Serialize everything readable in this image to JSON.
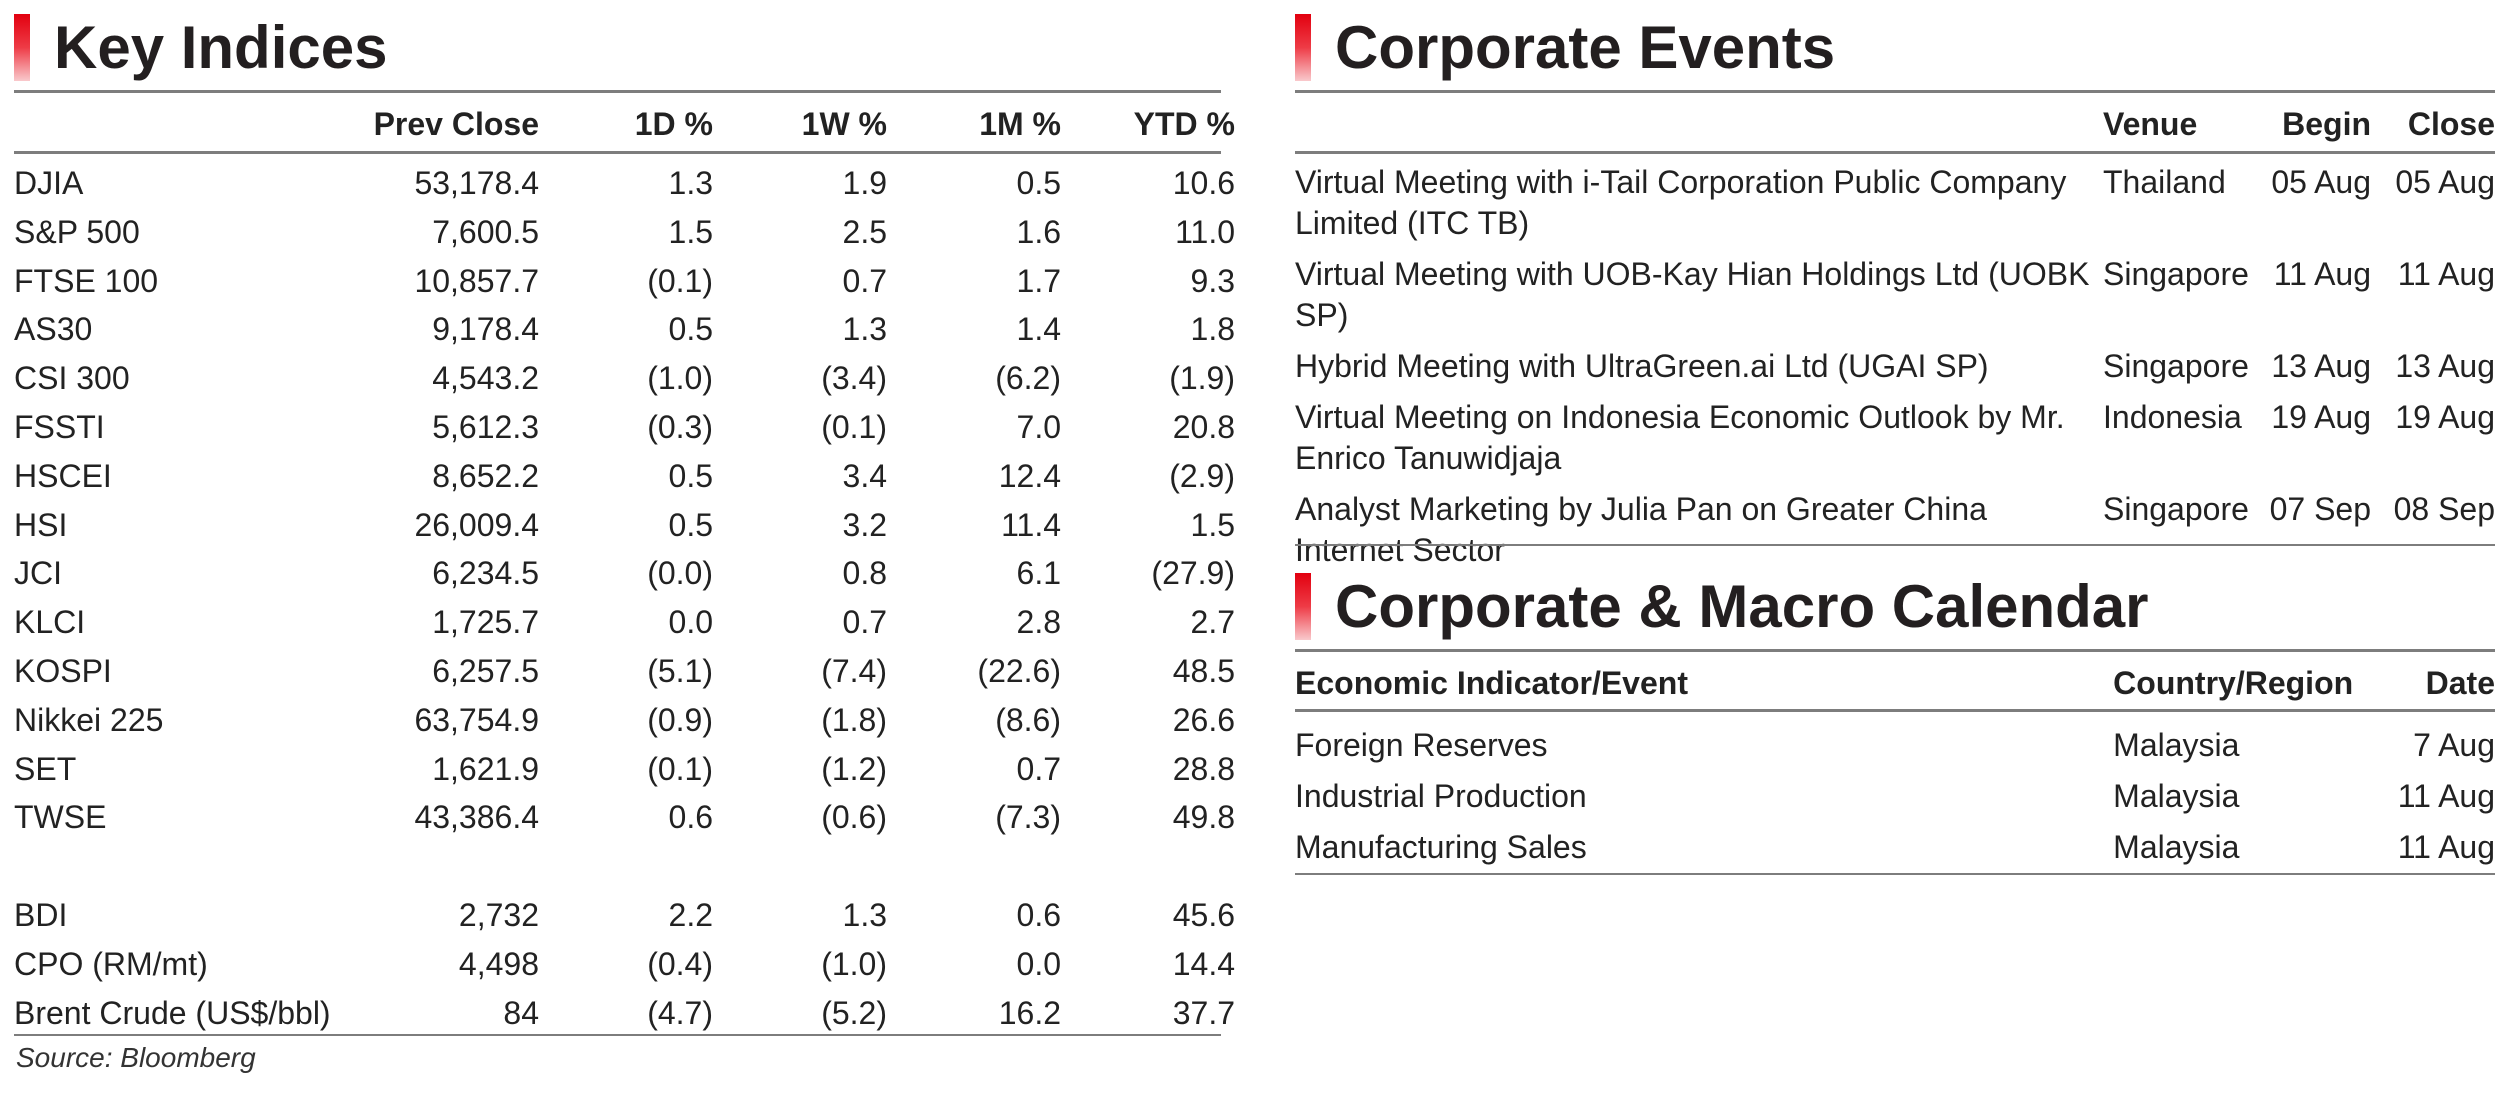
{
  "key_indices": {
    "title": "Key Indices",
    "columns": [
      "",
      "Prev Close",
      "1D %",
      "1W %",
      "1M %",
      "YTD %"
    ],
    "rows": [
      [
        "DJIA",
        "53,178.4",
        "1.3",
        "1.9",
        "0.5",
        "10.6"
      ],
      [
        "S&P 500",
        "7,600.5",
        "1.5",
        "2.5",
        "1.6",
        "11.0"
      ],
      [
        "FTSE 100",
        "10,857.7",
        "(0.1)",
        "0.7",
        "1.7",
        "9.3"
      ],
      [
        "AS30",
        "9,178.4",
        "0.5",
        "1.3",
        "1.4",
        "1.8"
      ],
      [
        "CSI 300",
        "4,543.2",
        "(1.0)",
        "(3.4)",
        "(6.2)",
        "(1.9)"
      ],
      [
        "FSSTI",
        "5,612.3",
        "(0.3)",
        "(0.1)",
        "7.0",
        "20.8"
      ],
      [
        "HSCEI",
        "8,652.2",
        "0.5",
        "3.4",
        "12.4",
        "(2.9)"
      ],
      [
        "HSI",
        "26,009.4",
        "0.5",
        "3.2",
        "11.4",
        "1.5"
      ],
      [
        "JCI",
        "6,234.5",
        "(0.0)",
        "0.8",
        "6.1",
        "(27.9)"
      ],
      [
        "KLCI",
        "1,725.7",
        "0.0",
        "0.7",
        "2.8",
        "2.7"
      ],
      [
        "KOSPI",
        "6,257.5",
        "(5.1)",
        "(7.4)",
        "(22.6)",
        "48.5"
      ],
      [
        "Nikkei 225",
        "63,754.9",
        "(0.9)",
        "(1.8)",
        "(8.6)",
        "26.6"
      ],
      [
        "SET",
        "1,621.9",
        "(0.1)",
        "(1.2)",
        "0.7",
        "28.8"
      ],
      [
        "TWSE",
        "43,386.4",
        "0.6",
        "(0.6)",
        "(7.3)",
        "49.8"
      ]
    ],
    "rows2": [
      [
        "BDI",
        "2,732",
        "2.2",
        "1.3",
        "0.6",
        "45.6"
      ],
      [
        "CPO (RM/mt)",
        "4,498",
        "(0.4)",
        "(1.0)",
        "0.0",
        "14.4"
      ],
      [
        "Brent Crude (US$/bbl)",
        "84",
        "(4.7)",
        "(5.2)",
        "16.2",
        "37.7"
      ]
    ],
    "source": "Source: Bloomberg"
  },
  "corporate_events": {
    "title": "Corporate Events",
    "columns": [
      "",
      "Venue",
      "Begin",
      "Close"
    ],
    "rows": [
      [
        "Virtual Meeting with i-Tail Corporation Public Company Limited (ITC TB)",
        "Thailand",
        "05 Aug",
        "05 Aug"
      ],
      [
        "Virtual Meeting with UOB-Kay Hian Holdings Ltd (UOBK SP)",
        "Singapore",
        "11 Aug",
        "11 Aug"
      ],
      [
        "Hybrid Meeting with UltraGreen.ai Ltd (UGAI SP)",
        "Singapore",
        "13 Aug",
        "13 Aug"
      ],
      [
        "Virtual Meeting on Indonesia Economic Outlook by Mr. Enrico Tanuwidjaja",
        "Indonesia",
        "19 Aug",
        "19 Aug"
      ],
      [
        "Analyst Marketing by Julia Pan on Greater China Internet Sector",
        "Singapore",
        "07 Sep",
        "08 Sep"
      ]
    ]
  },
  "calendar": {
    "title": "Corporate & Macro Calendar",
    "columns": [
      "Economic Indicator/Event",
      "Country/Region",
      "Date"
    ],
    "rows": [
      [
        "Foreign Reserves",
        "Malaysia",
        "7 Aug"
      ],
      [
        "Industrial Production",
        "Malaysia",
        "11 Aug"
      ],
      [
        "Manufacturing Sales",
        "Malaysia",
        "11 Aug"
      ]
    ]
  },
  "colors": {
    "accent_red": "#e2000f",
    "rule_grey": "#7d7d7d",
    "text": "#222222"
  }
}
